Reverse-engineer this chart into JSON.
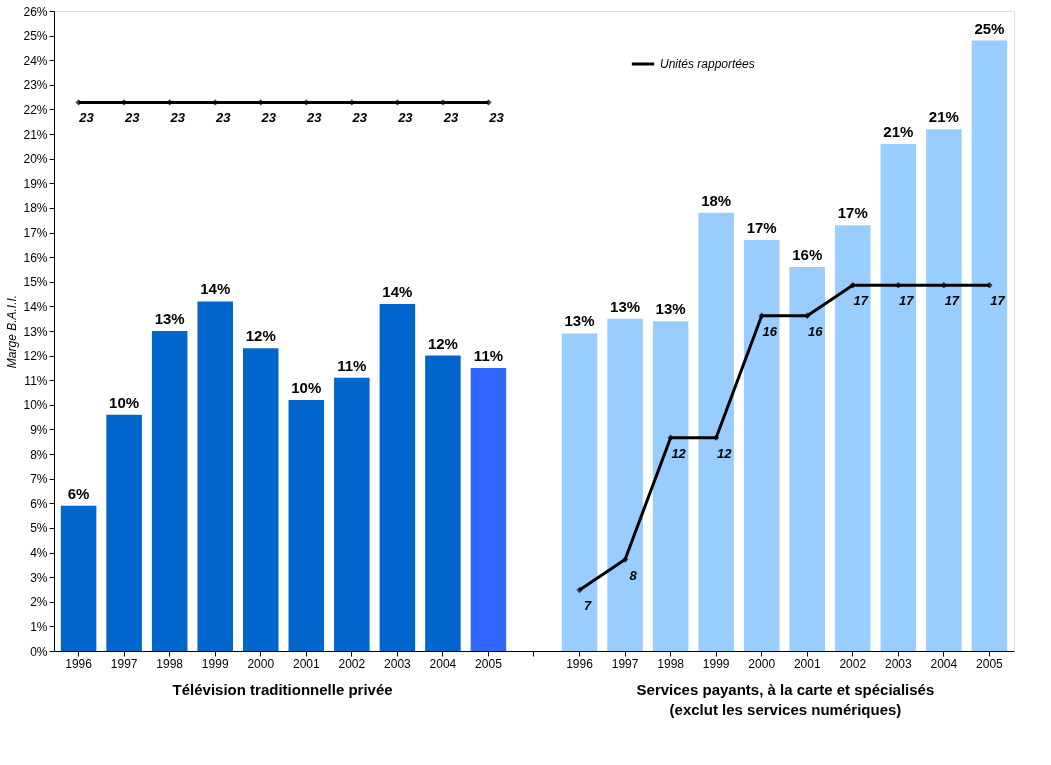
{
  "chart_data": {
    "type": "bar",
    "ylabel": "Marge B.A.I.I.",
    "categories": [
      "1996",
      "1997",
      "1998",
      "1999",
      "2000",
      "2001",
      "2002",
      "2003",
      "2004",
      "2005",
      null,
      "1996",
      "1997",
      "1998",
      "1999",
      "2000",
      "2001",
      "2002",
      "2003",
      "2004",
      "2005"
    ],
    "series": [
      {
        "type": "bar",
        "colors": [
          "#0066cc",
          "#0066cc",
          "#0066cc",
          "#0066cc",
          "#0066cc",
          "#0066cc",
          "#0066cc",
          "#0066cc",
          "#0066cc",
          "#3366ff",
          null,
          "#99ccff",
          "#99ccff",
          "#99ccff",
          "#99ccff",
          "#99ccff",
          "#99ccff",
          "#99ccff",
          "#99ccff",
          "#99ccff",
          "#99ccff"
        ],
        "values": [
          5.9,
          9.6,
          13.0,
          14.2,
          12.3,
          10.2,
          11.1,
          14.1,
          12.0,
          11.5,
          null,
          12.9,
          13.5,
          13.4,
          17.8,
          16.7,
          15.6,
          17.3,
          20.6,
          21.2,
          24.8
        ],
        "value_labels": [
          "6%",
          "10%",
          "13%",
          "14%",
          "12%",
          "10%",
          "11%",
          "14%",
          "12%",
          "11%",
          null,
          "13%",
          "13%",
          "13%",
          "18%",
          "17%",
          "16%",
          "17%",
          "21%",
          "21%",
          "25%"
        ]
      },
      {
        "type": "line",
        "name": "Unités rapportées",
        "color": "#000000",
        "axis": "y2",
        "marker": "diamond",
        "data_labels": true,
        "values": [
          23,
          23,
          23,
          23,
          23,
          23,
          23,
          23,
          23,
          23,
          null,
          7,
          8,
          12,
          12,
          16,
          16,
          17,
          17,
          17,
          17
        ]
      }
    ],
    "ylim": [
      0,
      26
    ],
    "yticks": [
      {
        "value": 0,
        "label": "0%"
      },
      {
        "value": 1,
        "label": "1%"
      },
      {
        "value": 2,
        "label": "2%"
      },
      {
        "value": 3,
        "label": "3%"
      },
      {
        "value": 4,
        "label": "4%"
      },
      {
        "value": 5,
        "label": "5%"
      },
      {
        "value": 6,
        "label": "6%"
      },
      {
        "value": 7,
        "label": "7%"
      },
      {
        "value": 8,
        "label": "8%"
      },
      {
        "value": 9,
        "label": "9%"
      },
      {
        "value": 10,
        "label": "10%"
      },
      {
        "value": 11,
        "label": "11%"
      },
      {
        "value": 12,
        "label": "12%"
      },
      {
        "value": 13,
        "label": "13%"
      },
      {
        "value": 14,
        "label": "14%"
      },
      {
        "value": 15,
        "label": "15%"
      },
      {
        "value": 16,
        "label": "16%"
      },
      {
        "value": 17,
        "label": "17%"
      },
      {
        "value": 18,
        "label": "18%"
      },
      {
        "value": 19,
        "label": "19%"
      },
      {
        "value": 20,
        "label": "20%"
      },
      {
        "value": 21,
        "label": "21%"
      },
      {
        "value": 22,
        "label": "22%"
      },
      {
        "value": 23,
        "label": "23%"
      },
      {
        "value": 24,
        "label": "24%"
      },
      {
        "value": 25,
        "label": "25%"
      },
      {
        "value": 26,
        "label": "26%"
      }
    ],
    "y2lim": [
      5,
      26
    ],
    "tick_labels": "xy",
    "grid": false,
    "legend": "top right",
    "annotations": [
      "Télévision traditionnelle privée",
      "Services payants, à la carte et spécialisés\n(exclut les services numériques)"
    ]
  }
}
